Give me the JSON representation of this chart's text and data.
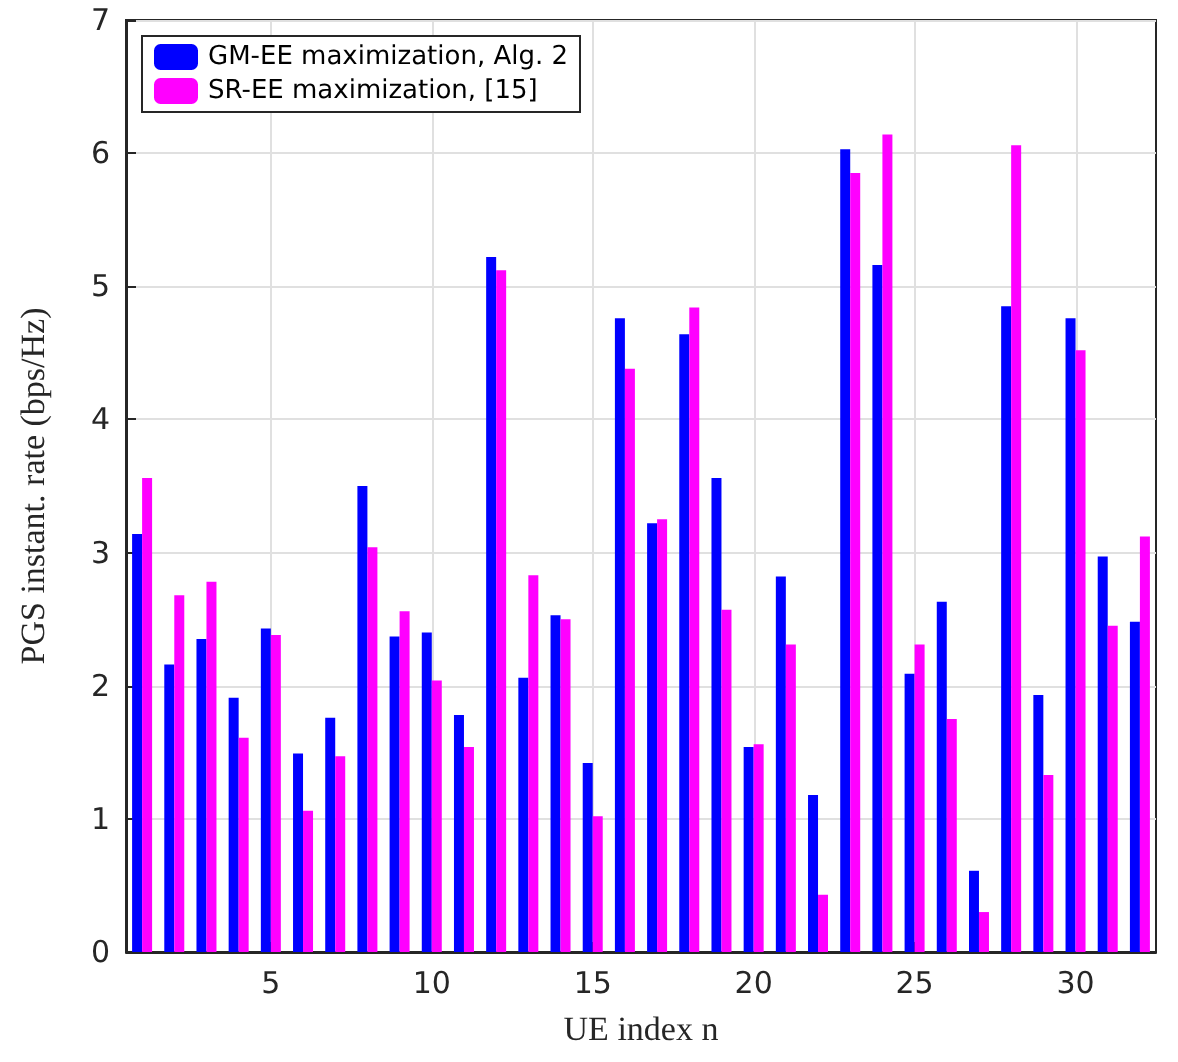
{
  "chart_data": {
    "type": "bar",
    "xlabel": "UE index n",
    "ylabel": "PGS instant. rate (bps/Hz)",
    "x": [
      1,
      2,
      3,
      4,
      5,
      6,
      7,
      8,
      9,
      10,
      11,
      12,
      13,
      14,
      15,
      16,
      17,
      18,
      19,
      20,
      21,
      22,
      23,
      24,
      25,
      26,
      27,
      28,
      29,
      30,
      31,
      32
    ],
    "series": [
      {
        "name": "GM-EE maximization, Alg. 2",
        "color": "#0000ff",
        "values": [
          3.14,
          2.16,
          2.35,
          1.91,
          2.43,
          1.49,
          1.76,
          3.5,
          2.37,
          2.4,
          1.78,
          5.22,
          2.06,
          2.53,
          1.42,
          4.76,
          3.22,
          4.64,
          3.56,
          1.54,
          2.82,
          1.18,
          6.03,
          5.16,
          2.09,
          2.63,
          0.61,
          4.85,
          1.93,
          4.76,
          2.97,
          2.48
        ]
      },
      {
        "name": "SR-EE maximization, [15]",
        "color": "#ff00ff",
        "values": [
          3.56,
          2.68,
          2.78,
          1.61,
          2.38,
          1.06,
          1.47,
          3.04,
          2.56,
          2.04,
          1.54,
          5.12,
          2.83,
          2.5,
          1.02,
          4.38,
          3.25,
          4.84,
          2.57,
          1.56,
          2.31,
          0.43,
          5.85,
          6.14,
          2.31,
          1.75,
          0.3,
          6.06,
          1.33,
          4.52,
          2.45,
          3.12
        ]
      }
    ],
    "xlim": [
      0.5,
      32.5
    ],
    "xticks": [
      5,
      10,
      15,
      20,
      25,
      30
    ],
    "ylim": [
      0,
      7
    ],
    "yticks": [
      0,
      1,
      2,
      3,
      4,
      5,
      6,
      7
    ],
    "grid": true,
    "legend": "top left"
  }
}
